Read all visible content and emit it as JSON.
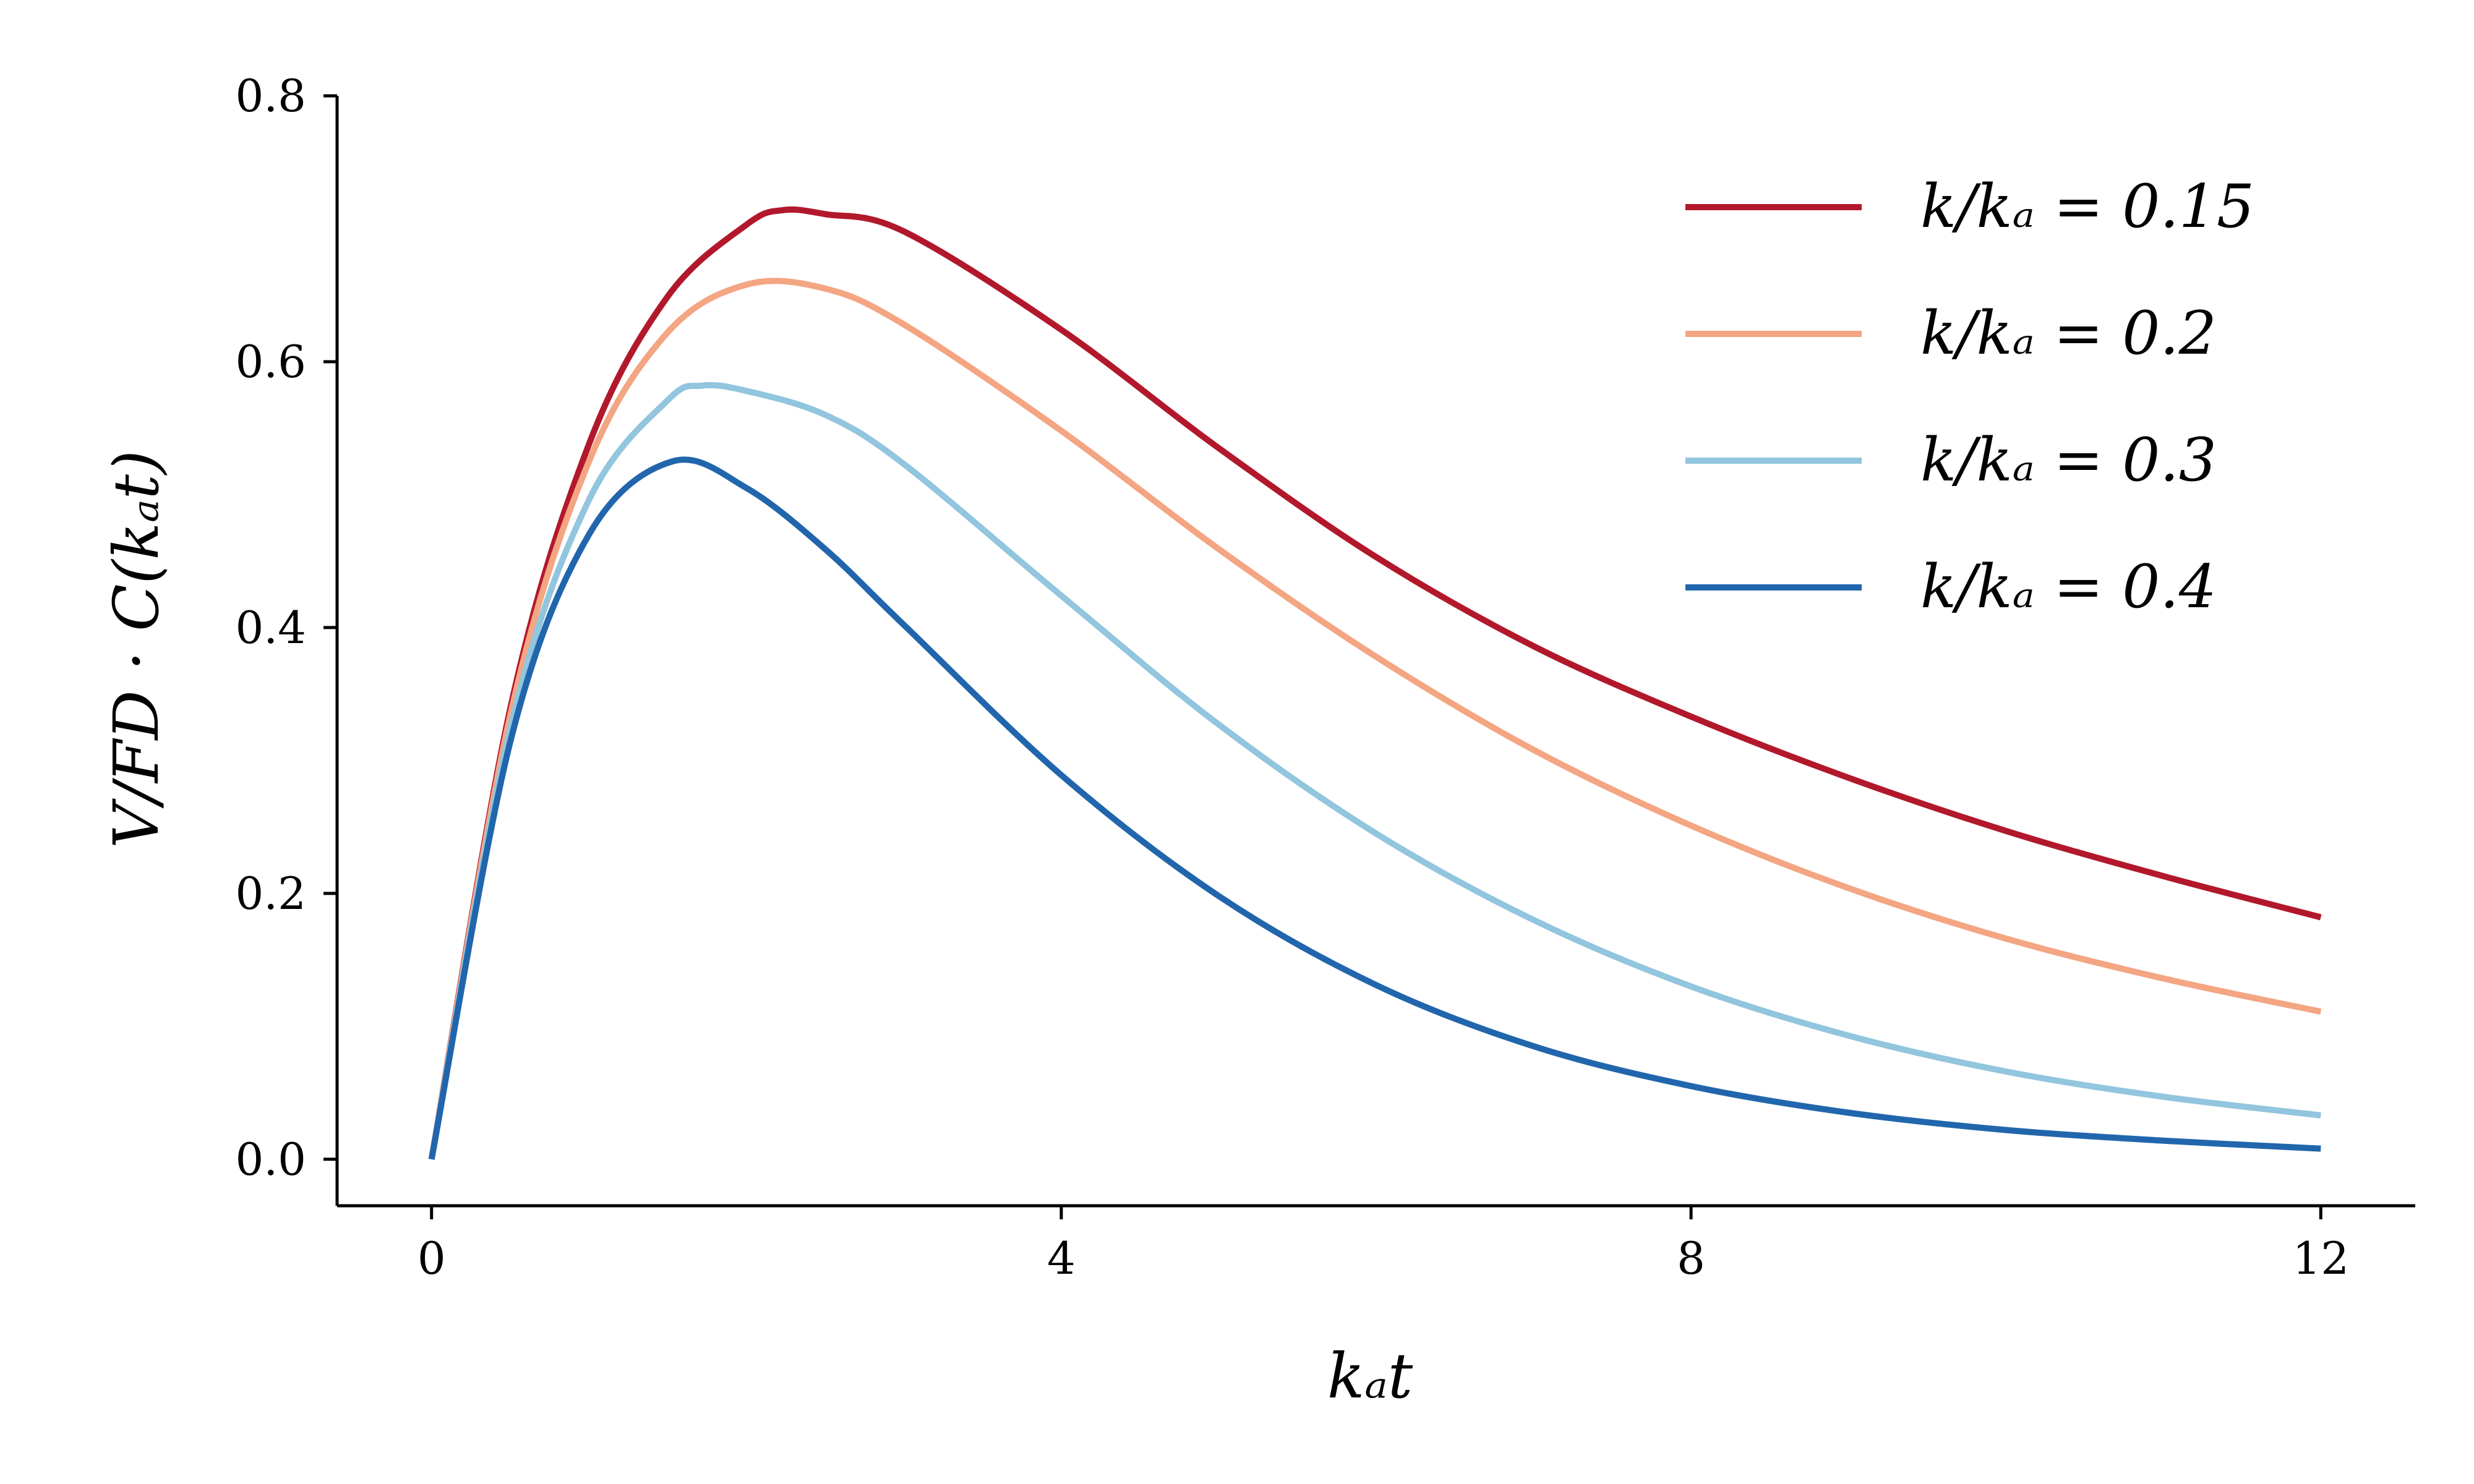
{
  "chart_data": {
    "type": "line",
    "xlabel": "kₐt",
    "ylabel": "V/FD · C(kₐt)",
    "xlim": [
      -0.6,
      12.6
    ],
    "ylim": [
      -0.035,
      0.8
    ],
    "xticks": [
      0,
      4,
      8,
      12
    ],
    "yticks": [
      0.0,
      0.2,
      0.4,
      0.6,
      0.8
    ],
    "xtick_labels": [
      "0",
      "4",
      "8",
      "12"
    ],
    "ytick_labels": [
      "0.0",
      "0.2",
      "0.4",
      "0.6",
      "0.8"
    ],
    "grid": false,
    "legend_position": "top-right",
    "series": [
      {
        "name": "k/kₐ = 0.15",
        "color": "#b2182b",
        "x": [
          0,
          0.5,
          1,
          1.5,
          2,
          2.23,
          2.5,
          3,
          4,
          5,
          6,
          7,
          8,
          9,
          10,
          11,
          12
        ],
        "y": [
          0,
          0.339,
          0.538,
          0.649,
          0.703,
          0.714,
          0.711,
          0.698,
          0.624,
          0.535,
          0.453,
          0.386,
          0.333,
          0.287,
          0.247,
          0.213,
          0.182
        ]
      },
      {
        "name": "k/kₐ = 0.2",
        "color": "#f4a582",
        "x": [
          0,
          0.5,
          1,
          1.5,
          2,
          2.5,
          3,
          4,
          5,
          6,
          7,
          8,
          9,
          10,
          11,
          12
        ],
        "y": [
          0,
          0.334,
          0.525,
          0.622,
          0.658,
          0.655,
          0.628,
          0.548,
          0.459,
          0.378,
          0.308,
          0.251,
          0.204,
          0.166,
          0.136,
          0.111
        ]
      },
      {
        "name": "k/kₐ = 0.3",
        "color": "#92c5de",
        "x": [
          0,
          0.5,
          1,
          1.5,
          1.72,
          2,
          2.5,
          3,
          4,
          5,
          6,
          7,
          8,
          9,
          10,
          11,
          12
        ],
        "y": [
          0,
          0.324,
          0.496,
          0.571,
          0.582,
          0.578,
          0.56,
          0.523,
          0.424,
          0.327,
          0.245,
          0.18,
          0.13,
          0.093,
          0.066,
          0.047,
          0.033
        ]
      },
      {
        "name": "k/kₐ = 0.4",
        "color": "#2166ac",
        "x": [
          0,
          0.5,
          1,
          1.53,
          2,
          2.5,
          3,
          4,
          5,
          6,
          7,
          8,
          9,
          10,
          11,
          12
        ],
        "y": [
          0,
          0.314,
          0.47,
          0.525,
          0.505,
          0.459,
          0.402,
          0.289,
          0.198,
          0.131,
          0.085,
          0.055,
          0.035,
          0.022,
          0.014,
          0.008
        ]
      }
    ]
  }
}
